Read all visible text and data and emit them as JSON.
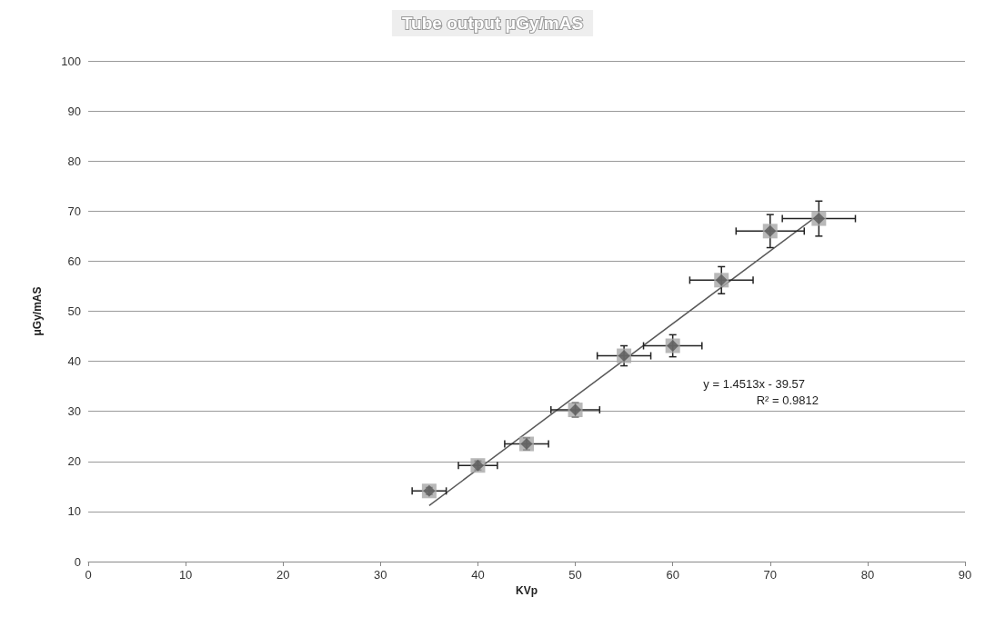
{
  "chart_data": {
    "type": "scatter",
    "title": "Tube output μGy/mAS",
    "xlabel": "KVp",
    "ylabel": "μGy/mAS",
    "xlim": [
      0,
      90
    ],
    "xticks": [
      0,
      10,
      20,
      30,
      40,
      50,
      60,
      70,
      80,
      90
    ],
    "ylim": [
      0,
      100
    ],
    "yticks": [
      0,
      10,
      20,
      30,
      40,
      50,
      60,
      70,
      80,
      90,
      100
    ],
    "grid": "y",
    "marker": "diamond",
    "annotations": [
      "y = 1.4513x - 39.57",
      "R² = 0.9812"
    ],
    "series": [
      {
        "color": "#595959",
        "x": [
          35,
          40,
          45,
          50,
          55,
          60,
          65,
          70,
          75
        ],
        "values": [
          14.1,
          19.2,
          23.5,
          30.3,
          41.1,
          43.1,
          56.2,
          66.0,
          68.5
        ],
        "errors": [
          0.7,
          0.9,
          1.2,
          1.4,
          2.0,
          2.2,
          2.7,
          3.3,
          3.5
        ],
        "xerrors": [
          1.75,
          2,
          2.25,
          2.5,
          2.75,
          3,
          3.25,
          3.5,
          3.75
        ]
      },
      {
        "type": "line",
        "color": "#595959",
        "x": [
          35,
          75
        ],
        "values": [
          11.2,
          69.3
        ],
        "line_style": "solid",
        "marker": "none"
      }
    ]
  }
}
